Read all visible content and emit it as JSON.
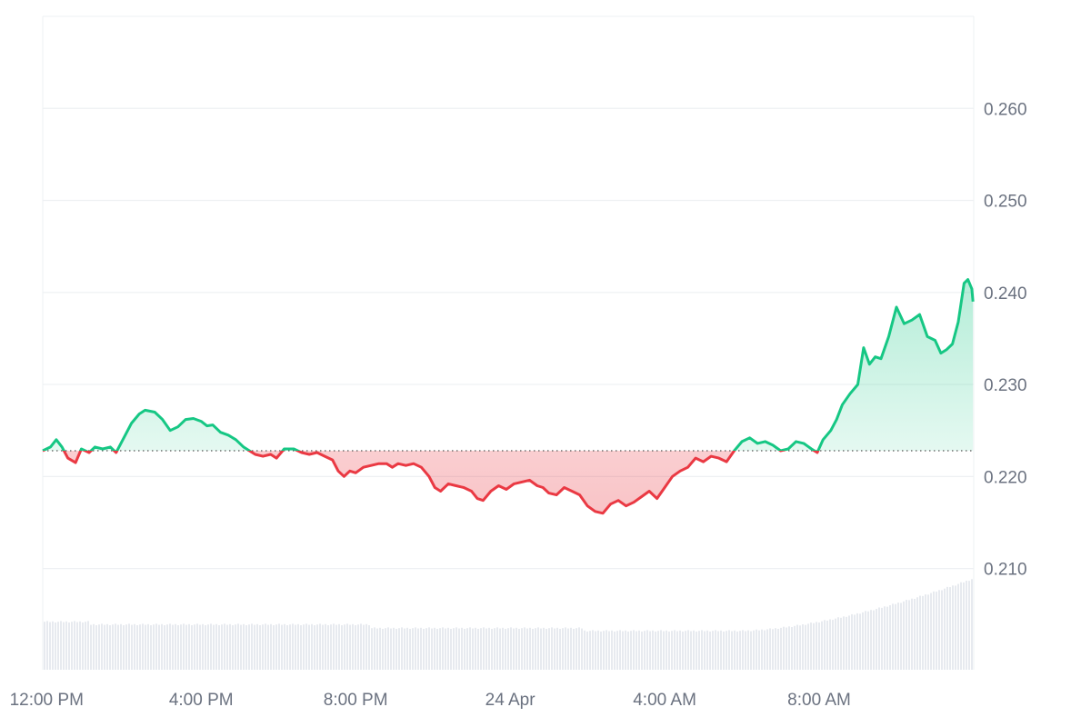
{
  "chart_data": {
    "type": "area",
    "baseline": 0.2228,
    "ylim": [
      0.199,
      0.27
    ],
    "y_ticks": [
      "0.210",
      "0.220",
      "0.230",
      "0.240",
      "0.250",
      "0.260"
    ],
    "y_tick_values": [
      0.21,
      0.22,
      0.23,
      0.24,
      0.25,
      0.26
    ],
    "x_ticks": [
      "12:00 PM",
      "4:00 PM",
      "8:00 PM",
      "24 Apr",
      "4:00 AM",
      "8:00 AM"
    ],
    "x_tick_hours": [
      12,
      16,
      20,
      24,
      28,
      32
    ],
    "xlim_hours": [
      11.9,
      36.0
    ],
    "series": [
      {
        "values": [
          [
            11.9,
            0.2228
          ],
          [
            12.1,
            0.2232
          ],
          [
            12.25,
            0.224
          ],
          [
            12.4,
            0.2232
          ],
          [
            12.55,
            0.222
          ],
          [
            12.75,
            0.2215
          ],
          [
            12.9,
            0.223
          ],
          [
            13.1,
            0.2226
          ],
          [
            13.25,
            0.2232
          ],
          [
            13.45,
            0.223
          ],
          [
            13.65,
            0.2232
          ],
          [
            13.8,
            0.2226
          ],
          [
            14.0,
            0.2242
          ],
          [
            14.2,
            0.2258
          ],
          [
            14.4,
            0.2268
          ],
          [
            14.55,
            0.2272
          ],
          [
            14.8,
            0.227
          ],
          [
            15.0,
            0.2262
          ],
          [
            15.2,
            0.225
          ],
          [
            15.4,
            0.2254
          ],
          [
            15.6,
            0.2262
          ],
          [
            15.8,
            0.2263
          ],
          [
            16.0,
            0.226
          ],
          [
            16.15,
            0.2255
          ],
          [
            16.3,
            0.2256
          ],
          [
            16.5,
            0.2248
          ],
          [
            16.7,
            0.2245
          ],
          [
            16.9,
            0.224
          ],
          [
            17.1,
            0.2232
          ],
          [
            17.25,
            0.2228
          ],
          [
            17.4,
            0.2224
          ],
          [
            17.6,
            0.2222
          ],
          [
            17.8,
            0.2224
          ],
          [
            17.95,
            0.222
          ],
          [
            18.15,
            0.223
          ],
          [
            18.4,
            0.223
          ],
          [
            18.6,
            0.2226
          ],
          [
            18.8,
            0.2224
          ],
          [
            19.0,
            0.2226
          ],
          [
            19.2,
            0.2222
          ],
          [
            19.4,
            0.2218
          ],
          [
            19.55,
            0.2206
          ],
          [
            19.7,
            0.22
          ],
          [
            19.85,
            0.2206
          ],
          [
            20.0,
            0.2204
          ],
          [
            20.2,
            0.221
          ],
          [
            20.4,
            0.2212
          ],
          [
            20.6,
            0.2214
          ],
          [
            20.8,
            0.2214
          ],
          [
            20.95,
            0.221
          ],
          [
            21.1,
            0.2214
          ],
          [
            21.3,
            0.2212
          ],
          [
            21.5,
            0.2214
          ],
          [
            21.7,
            0.221
          ],
          [
            21.9,
            0.22
          ],
          [
            22.05,
            0.2188
          ],
          [
            22.2,
            0.2184
          ],
          [
            22.4,
            0.2192
          ],
          [
            22.6,
            0.219
          ],
          [
            22.8,
            0.2188
          ],
          [
            23.0,
            0.2184
          ],
          [
            23.15,
            0.2176
          ],
          [
            23.3,
            0.2174
          ],
          [
            23.5,
            0.2184
          ],
          [
            23.7,
            0.219
          ],
          [
            23.9,
            0.2186
          ],
          [
            24.1,
            0.2192
          ],
          [
            24.3,
            0.2194
          ],
          [
            24.5,
            0.2196
          ],
          [
            24.7,
            0.219
          ],
          [
            24.85,
            0.2188
          ],
          [
            25.0,
            0.2182
          ],
          [
            25.2,
            0.218
          ],
          [
            25.4,
            0.2188
          ],
          [
            25.6,
            0.2184
          ],
          [
            25.8,
            0.218
          ],
          [
            26.0,
            0.2168
          ],
          [
            26.2,
            0.2162
          ],
          [
            26.4,
            0.216
          ],
          [
            26.6,
            0.217
          ],
          [
            26.8,
            0.2174
          ],
          [
            27.0,
            0.2168
          ],
          [
            27.2,
            0.2172
          ],
          [
            27.4,
            0.2178
          ],
          [
            27.6,
            0.2184
          ],
          [
            27.8,
            0.2176
          ],
          [
            28.0,
            0.2188
          ],
          [
            28.2,
            0.22
          ],
          [
            28.4,
            0.2206
          ],
          [
            28.6,
            0.221
          ],
          [
            28.8,
            0.222
          ],
          [
            29.0,
            0.2216
          ],
          [
            29.2,
            0.2222
          ],
          [
            29.4,
            0.222
          ],
          [
            29.6,
            0.2216
          ],
          [
            29.8,
            0.2228
          ],
          [
            30.0,
            0.2238
          ],
          [
            30.2,
            0.2242
          ],
          [
            30.4,
            0.2236
          ],
          [
            30.6,
            0.2238
          ],
          [
            30.8,
            0.2234
          ],
          [
            31.0,
            0.2228
          ],
          [
            31.2,
            0.223
          ],
          [
            31.4,
            0.2238
          ],
          [
            31.6,
            0.2236
          ],
          [
            31.8,
            0.223
          ],
          [
            31.95,
            0.2226
          ],
          [
            32.1,
            0.224
          ],
          [
            32.3,
            0.225
          ],
          [
            32.45,
            0.2262
          ],
          [
            32.6,
            0.2278
          ],
          [
            32.8,
            0.229
          ],
          [
            33.0,
            0.23
          ],
          [
            33.15,
            0.234
          ],
          [
            33.3,
            0.2322
          ],
          [
            33.45,
            0.233
          ],
          [
            33.6,
            0.2328
          ],
          [
            33.8,
            0.2352
          ],
          [
            34.0,
            0.2384
          ],
          [
            34.2,
            0.2366
          ],
          [
            34.4,
            0.237
          ],
          [
            34.6,
            0.2376
          ],
          [
            34.8,
            0.2352
          ],
          [
            35.0,
            0.2348
          ],
          [
            35.15,
            0.2334
          ],
          [
            35.3,
            0.2338
          ],
          [
            35.45,
            0.2344
          ],
          [
            35.6,
            0.2368
          ],
          [
            35.75,
            0.241
          ],
          [
            35.85,
            0.2414
          ],
          [
            35.95,
            0.2404
          ],
          [
            35.98,
            0.239
          ]
        ]
      }
    ]
  },
  "colors": {
    "up_line": "#16c784",
    "down_line": "#ea3943",
    "up_fill_top": "#16c784",
    "down_fill": "#ea3943",
    "grid": "#eef0f3",
    "volume": "#e7eaef",
    "baseline": "#555555"
  }
}
